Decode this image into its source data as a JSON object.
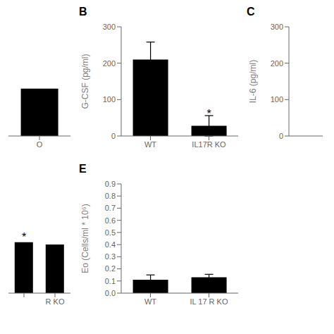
{
  "chart_data": [
    {
      "type": "bar",
      "categories": [
        "O"
      ],
      "values": [
        130
      ],
      "color": "#000000",
      "ylim": [
        0,
        300
      ],
      "tick_labels": "x",
      "grid": false
    },
    {
      "type": "bar",
      "title": "B",
      "categories": [
        "WT",
        "IL17R KO"
      ],
      "values": [
        210,
        28
      ],
      "errors": [
        48,
        28
      ],
      "y_label": "G-CSF (pg/ml)",
      "color": "#000000",
      "ylim": [
        0,
        300
      ],
      "yticks": [
        0,
        100,
        200,
        300
      ],
      "annotations": [
        {
          "text": "*",
          "category": "IL17R KO",
          "y": 61
        }
      ],
      "grid": false
    },
    {
      "type": "bar",
      "title": "C",
      "categories": [],
      "values": [],
      "y_label": "IL-6 (pg/ml)",
      "ylim": [
        0,
        300
      ],
      "yticks": [
        0,
        100,
        200,
        300
      ],
      "tick_labels": "y",
      "grid": false
    },
    {
      "type": "bar",
      "categories": [
        null,
        "R KO"
      ],
      "values": [
        0.42,
        0.4
      ],
      "color": "#000000",
      "ylim": [
        0.0,
        0.9
      ],
      "annotations": [
        {
          "text": "*",
          "y": 0.46
        }
      ],
      "tick_labels": "x",
      "grid": false
    },
    {
      "type": "bar",
      "title": "E",
      "categories": [
        "WT",
        "IL 17 R KO"
      ],
      "values": [
        0.11,
        0.13
      ],
      "errors": [
        0.04,
        0.025
      ],
      "y_label": "Eo (Cells/ml * 10⁶)",
      "color": "#000000",
      "ylim": [
        0.0,
        0.9
      ],
      "yticks": [
        {
          "value": 0.0,
          "label": "0.0"
        },
        0.1,
        0.2,
        0.3,
        0.4,
        0.5,
        0.6,
        0.7,
        0.8,
        0.9
      ],
      "grid": false
    }
  ]
}
